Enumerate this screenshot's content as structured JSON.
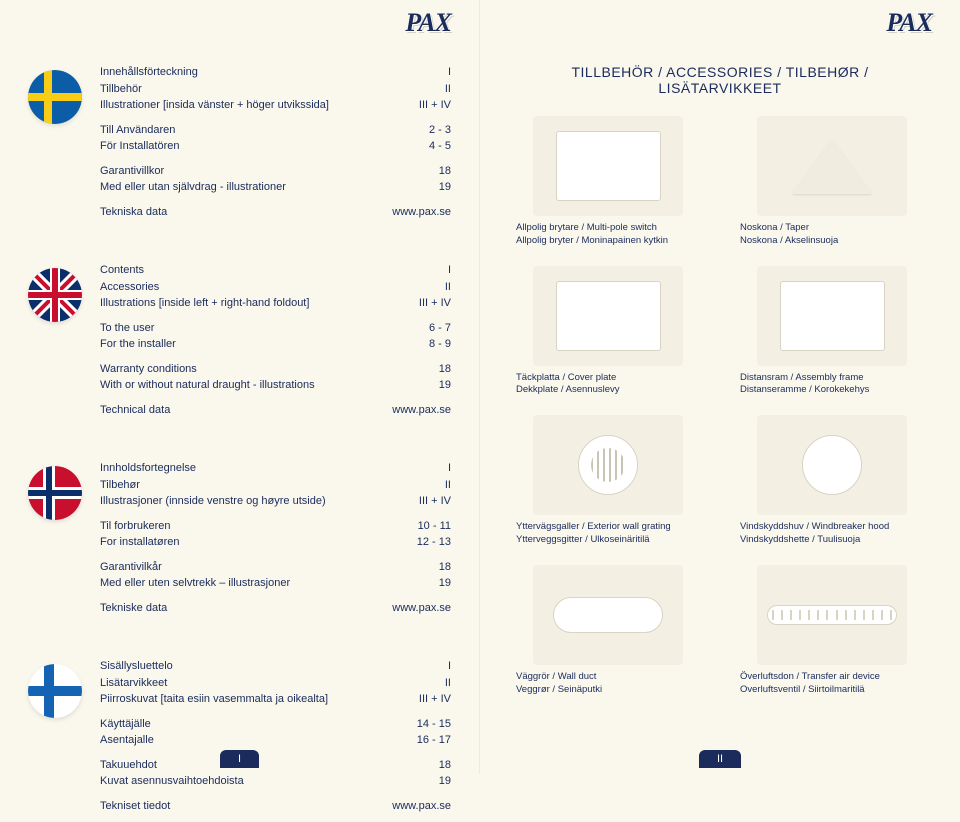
{
  "brand": "PAX",
  "colors": {
    "text": "#1a2b5c",
    "background": "#faf7ec",
    "tab_bg": "#1a2b5c",
    "tab_fg": "#ffffff"
  },
  "left": {
    "sections": [
      {
        "flag": "se",
        "groups": [
          [
            {
              "label": "Innehållsförteckning",
              "val": "I"
            },
            {
              "label": "Tillbehör",
              "val": "II"
            },
            {
              "label": "Illustrationer [insida vänster + höger utvikssida]",
              "val": "III + IV"
            }
          ],
          [
            {
              "label": "Till Användaren",
              "val": "2 - 3"
            },
            {
              "label": "För Installatören",
              "val": "4 - 5"
            }
          ],
          [
            {
              "label": "Garantivillkor",
              "val": "18"
            },
            {
              "label": "Med eller utan självdrag - illustrationer",
              "val": "19"
            }
          ],
          [
            {
              "label": "Tekniska data",
              "val": "www.pax.se"
            }
          ]
        ]
      },
      {
        "flag": "gb",
        "groups": [
          [
            {
              "label": "Contents",
              "val": "I"
            },
            {
              "label": "Accessories",
              "val": "II"
            },
            {
              "label": "Illustrations [inside left + right-hand foldout]",
              "val": "III + IV"
            }
          ],
          [
            {
              "label": "To the user",
              "val": "6 - 7"
            },
            {
              "label": "For the installer",
              "val": "8 - 9"
            }
          ],
          [
            {
              "label": "Warranty conditions",
              "val": "18"
            },
            {
              "label": "With or without natural draught - illustrations",
              "val": "19"
            }
          ],
          [
            {
              "label": "Technical data",
              "val": "www.pax.se"
            }
          ]
        ]
      },
      {
        "flag": "no",
        "groups": [
          [
            {
              "label": "Innholdsfortegnelse",
              "val": "I"
            },
            {
              "label": "Tilbehør",
              "val": "II"
            },
            {
              "label": "Illustrasjoner (innside venstre og høyre utside)",
              "val": "III + IV"
            }
          ],
          [
            {
              "label": "Til forbrukeren",
              "val": "10 - 11"
            },
            {
              "label": "For installatøren",
              "val": "12 - 13"
            }
          ],
          [
            {
              "label": "Garantivilkår",
              "val": "18"
            },
            {
              "label": "Med eller uten selvtrekk – illustrasjoner",
              "val": "19"
            }
          ],
          [
            {
              "label": "Tekniske data",
              "val": "www.pax.se"
            }
          ]
        ]
      },
      {
        "flag": "fi",
        "groups": [
          [
            {
              "label": "Sisällysluettelo",
              "val": "I"
            },
            {
              "label": "Lisätarvikkeet",
              "val": "II"
            },
            {
              "label": "Piirroskuvat [taita esiin vasemmalta ja oikealta]",
              "val": "III + IV"
            }
          ],
          [
            {
              "label": "Käyttäjälle",
              "val": "14 - 15"
            },
            {
              "label": "Asentajalle",
              "val": "16 - 17"
            }
          ],
          [
            {
              "label": "Takuuehdot",
              "val": "18"
            },
            {
              "label": "Kuvat asennusvaihtoehdoista",
              "val": "19"
            }
          ],
          [
            {
              "label": "Tekniset tiedot",
              "val": "www.pax.se"
            }
          ]
        ]
      }
    ],
    "footer_tab": "I"
  },
  "right": {
    "title": "TILLBEHÖR / ACCESSORIES / TILBEHØR / LISÄTARVIKKEET",
    "products": [
      {
        "line1": "Allpolig brytare / Multi-pole switch",
        "line2": "Allpolig bryter / Moninapainen kytkin",
        "shape": "box"
      },
      {
        "line1": "Noskona / Taper",
        "line2": "Noskona / Akselinsuoja",
        "shape": "cone"
      },
      {
        "line1": "Täckplatta / Cover plate",
        "line2": "Dekkplate / Asennuslevy",
        "shape": "box"
      },
      {
        "line1": "Distansram / Assembly frame",
        "line2": "Distanseramme / Korokekehys",
        "shape": "box"
      },
      {
        "line1": "Yttervägsgaller / Exterior wall grating",
        "line2": "Ytterveggsgitter / Ulkoseinäritilä",
        "shape": "grating"
      },
      {
        "line1": "Vindskyddshuv / Windbreaker hood",
        "line2": "Vindskyddshette / Tuulisuoja",
        "shape": "circle"
      },
      {
        "line1": "Väggrör / Wall duct",
        "line2": "Veggrør / Seinäputki",
        "shape": "tube"
      },
      {
        "line1": "Överluftsdon / Transfer air device",
        "line2": "Overluftsventil / Siirtoilmaritilä",
        "shape": "slot"
      }
    ],
    "footer_tab": "II"
  }
}
